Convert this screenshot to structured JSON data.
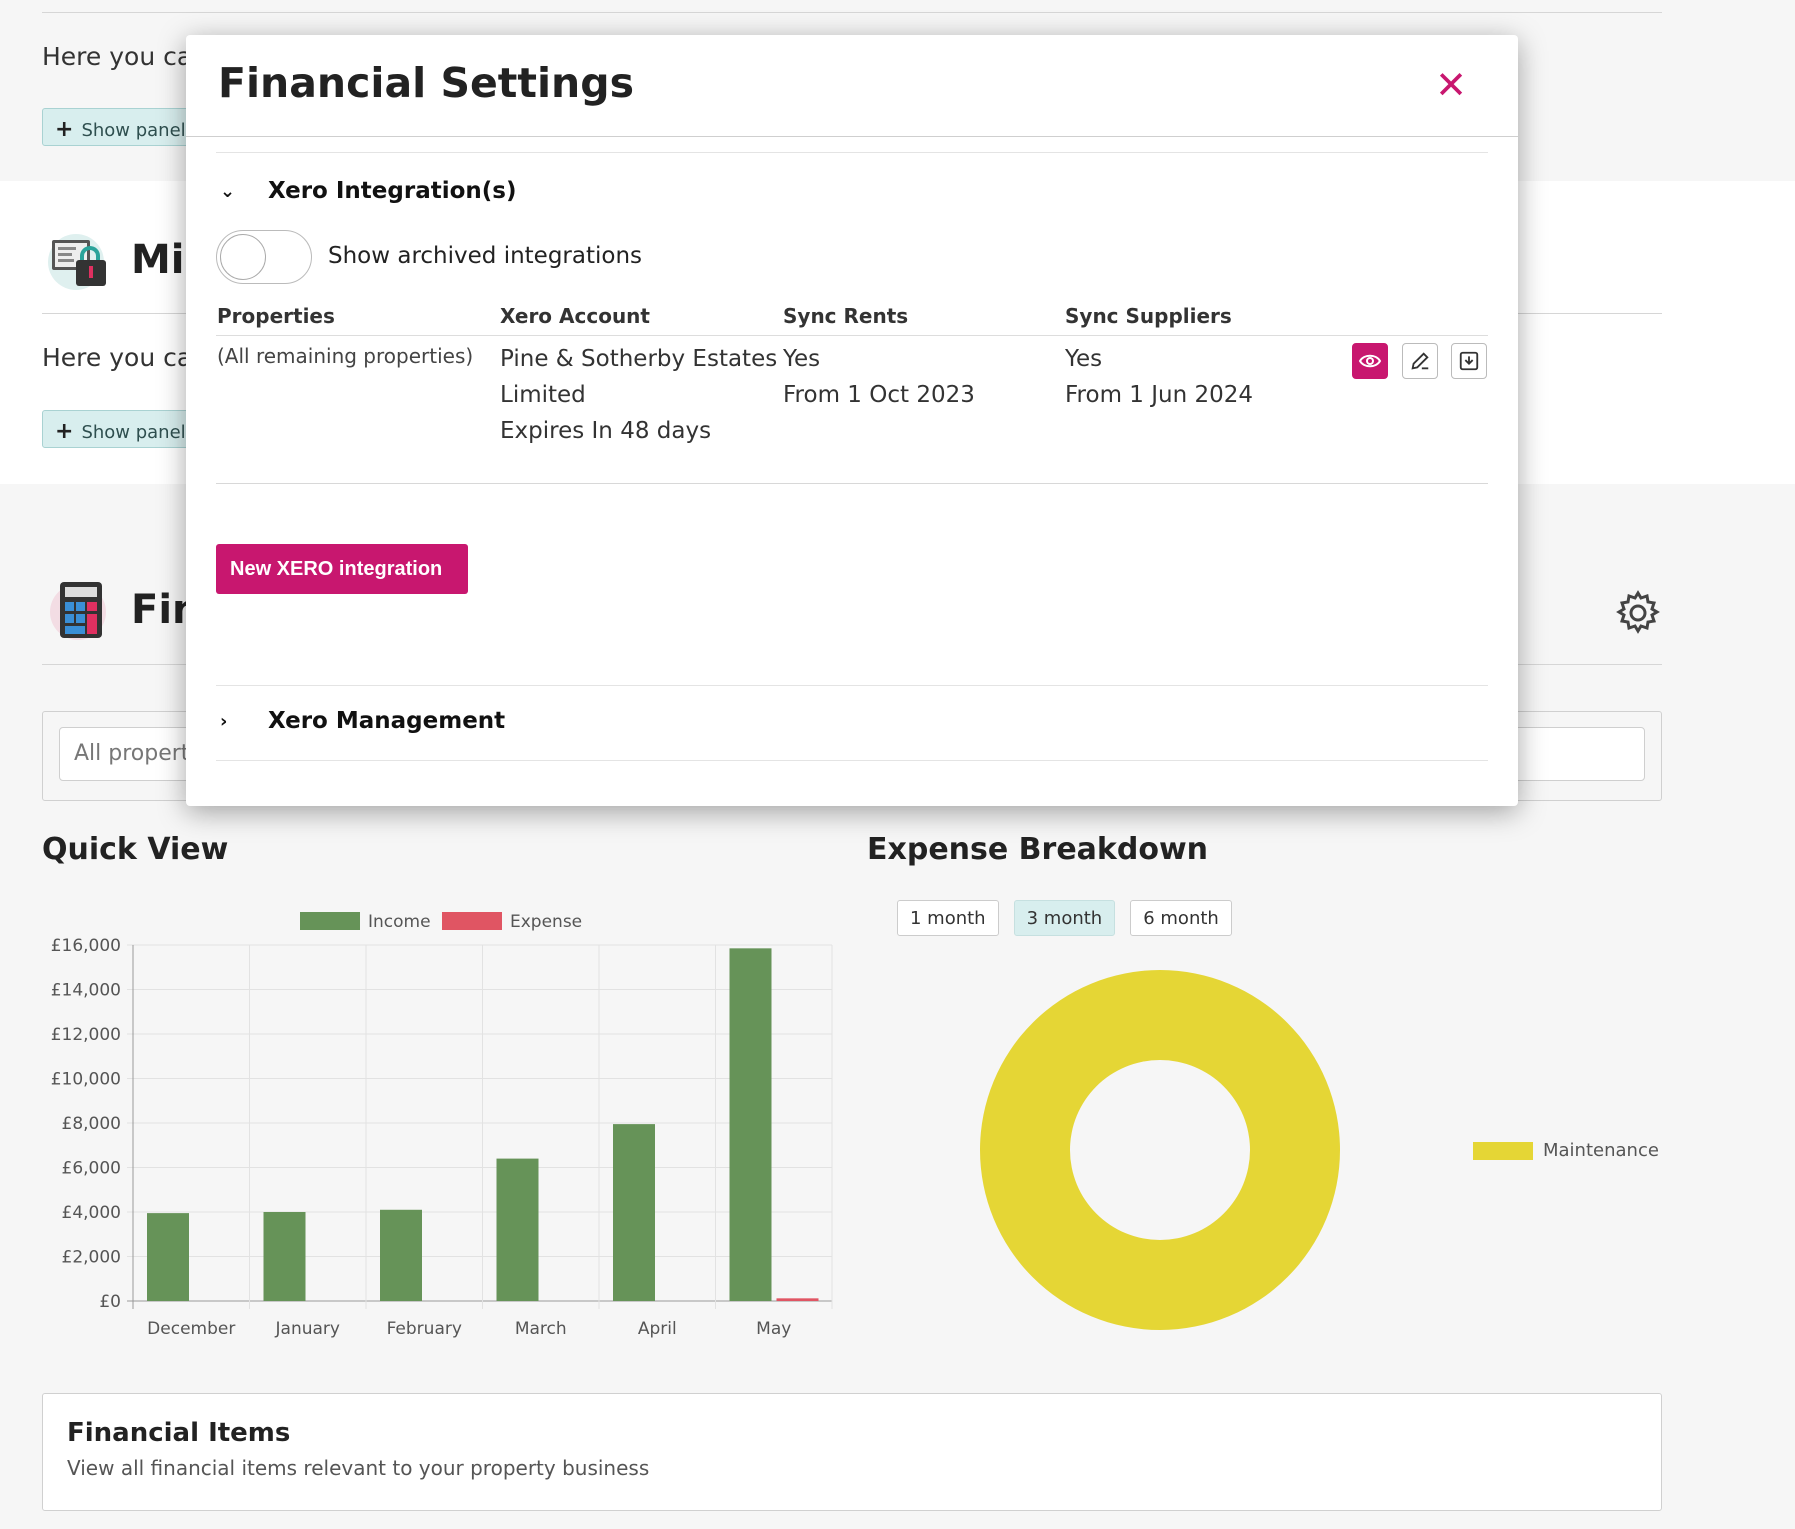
{
  "page": {
    "sections": [
      {
        "intro": "Here you ca",
        "show_panel": "Show panel c"
      },
      {
        "title": "Mi",
        "intro": "Here you ca",
        "show_panel": "Show panel c"
      },
      {
        "title": "Fin"
      }
    ],
    "filter_placeholder": "All propertie",
    "quick_view_title": "Quick View",
    "expense_title": "Expense Breakdown",
    "range_buttons": [
      "1 month",
      "3 month",
      "6 month"
    ],
    "range_selected": "3 month",
    "financial_items": {
      "title": "Financial Items",
      "subtitle": "View all financial items relevant to your property business"
    }
  },
  "modal": {
    "title": "Financial Settings",
    "close_icon": "close-icon",
    "xero_integrations": {
      "header": "Xero Integration(s)",
      "expanded": true,
      "toggle_label": "Show archived integrations",
      "toggle_on": false,
      "columns": [
        "Properties",
        "Xero Account",
        "Sync Rents",
        "Sync Suppliers"
      ],
      "rows": [
        {
          "properties": "(All remaining properties)",
          "account": [
            "Pine & Sotherby Estates",
            "Limited",
            "Expires In 48 days"
          ],
          "sync_rents": [
            "Yes",
            "From 1 Oct 2023"
          ],
          "sync_suppliers": [
            "Yes",
            "From 1 Jun 2024"
          ],
          "actions": [
            "view-icon",
            "edit-icon",
            "download-icon"
          ]
        }
      ],
      "new_button": "New XERO integration"
    },
    "xero_management": {
      "header": "Xero Management",
      "expanded": false
    }
  },
  "colors": {
    "accent": "#c8176f",
    "income": "#669358",
    "expense": "#e05563",
    "maintenance": "#e5d635",
    "teal_btn": "#d8eeee"
  },
  "chart_data": [
    {
      "type": "bar",
      "title": "Quick View",
      "categories": [
        "December",
        "January",
        "February",
        "March",
        "April",
        "May"
      ],
      "series": [
        {
          "name": "Income",
          "values": [
            3950,
            4000,
            4100,
            6400,
            7950,
            15850
          ]
        },
        {
          "name": "Expense",
          "values": [
            0,
            0,
            0,
            0,
            0,
            120
          ]
        }
      ],
      "y_ticks": [
        "£0",
        "£2,000",
        "£4,000",
        "£6,000",
        "£8,000",
        "£10,000",
        "£12,000",
        "£14,000",
        "£16,000"
      ],
      "ylim": [
        0,
        16000
      ],
      "legend": "top"
    },
    {
      "type": "pie",
      "title": "Expense Breakdown",
      "labels": [
        "Maintenance"
      ],
      "values": [
        100
      ],
      "donut": true,
      "legend": "right"
    }
  ]
}
